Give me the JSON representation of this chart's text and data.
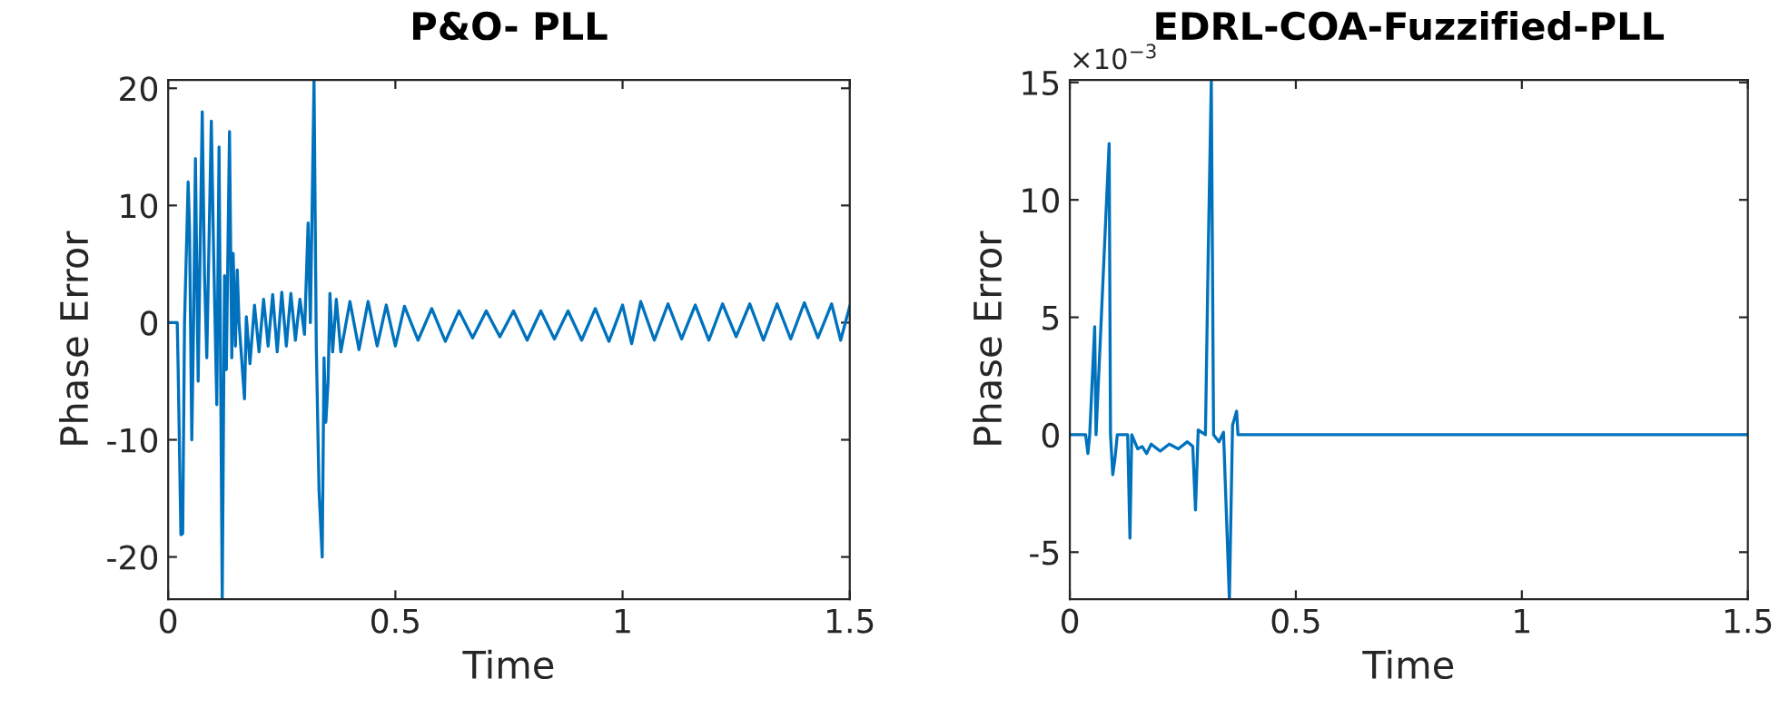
{
  "chart_data": [
    {
      "type": "line",
      "title": "P&O- PLL",
      "xlabel": "Time",
      "ylabel": "Phase Error",
      "xlim": [
        0,
        1.5
      ],
      "xticks": [
        0,
        0.5,
        1,
        1.5
      ],
      "ylim": [
        -23.6,
        20.7
      ],
      "yticks": [
        -20,
        -10,
        0,
        10,
        20
      ],
      "grid": false,
      "series": [
        {
          "color": "#0072bd",
          "x": [
            0,
            0.02,
            0.022,
            0.028,
            0.032,
            0.036,
            0.044,
            0.047,
            0.052,
            0.056,
            0.06,
            0.066,
            0.075,
            0.08,
            0.085,
            0.095,
            0.1,
            0.107,
            0.112,
            0.119,
            0.124,
            0.128,
            0.135,
            0.14,
            0.143,
            0.148,
            0.152,
            0.156,
            0.168,
            0.172,
            0.18,
            0.19,
            0.2,
            0.21,
            0.22,
            0.23,
            0.24,
            0.25,
            0.26,
            0.27,
            0.28,
            0.29,
            0.3,
            0.308,
            0.313,
            0.321,
            0.326,
            0.332,
            0.339,
            0.343,
            0.347,
            0.352,
            0.356,
            0.362,
            0.37,
            0.38,
            0.4,
            0.42,
            0.44,
            0.46,
            0.48,
            0.5,
            0.52,
            0.55,
            0.58,
            0.61,
            0.64,
            0.67,
            0.7,
            0.73,
            0.76,
            0.79,
            0.82,
            0.85,
            0.88,
            0.91,
            0.94,
            0.97,
            1.0,
            1.02,
            1.04,
            1.07,
            1.1,
            1.13,
            1.16,
            1.19,
            1.22,
            1.25,
            1.28,
            1.31,
            1.34,
            1.37,
            1.4,
            1.43,
            1.46,
            1.48,
            1.5
          ],
          "values": [
            0,
            0,
            -4,
            -18.1,
            -18,
            0,
            12,
            8,
            -10,
            0,
            14,
            -5,
            18,
            4,
            -3,
            17.2,
            6,
            -7,
            15,
            -23.6,
            4,
            -4,
            16.3,
            -3,
            5.9,
            -2,
            4.5,
            0,
            -6.5,
            0.5,
            -3.5,
            1.5,
            -2.5,
            2,
            -2,
            2.4,
            -2.5,
            2.6,
            -2,
            2.5,
            -1.5,
            2,
            -1,
            8.5,
            0,
            20.7,
            -2,
            -14.3,
            -20,
            -3,
            -8.5,
            -5,
            2.5,
            -2.5,
            2,
            -2.5,
            1.8,
            -2.3,
            1.8,
            -2,
            1.5,
            -2,
            1.4,
            -1.5,
            1.2,
            -1.6,
            1,
            -1.3,
            1,
            -1.2,
            1,
            -1.5,
            1,
            -1.4,
            1,
            -1.5,
            1.2,
            -1.6,
            1.5,
            -1.8,
            1.8,
            -1.5,
            1.6,
            -1.4,
            1.5,
            -1.5,
            1.6,
            -1.2,
            1.6,
            -1.5,
            1.6,
            -1.4,
            1.7,
            -1.3,
            1.6,
            -1.5,
            1.4
          ]
        }
      ]
    },
    {
      "type": "line",
      "title": "EDRL-COA-Fuzzified-PLL",
      "xlabel": "Time",
      "ylabel": "Phase Error",
      "annotations": [
        "×10$^{−3}$"
      ],
      "xlim": [
        0,
        1.5
      ],
      "xticks": [
        0,
        0.5,
        1,
        1.5
      ],
      "ylim": [
        -7,
        15.1
      ],
      "yticks": [
        -5,
        0,
        5,
        10,
        15
      ],
      "grid": false,
      "series": [
        {
          "color": "#0072bd",
          "x": [
            0,
            0.035,
            0.04,
            0.044,
            0.055,
            0.058,
            0.087,
            0.09,
            0.095,
            0.1,
            0.105,
            0.128,
            0.133,
            0.137,
            0.15,
            0.16,
            0.17,
            0.18,
            0.2,
            0.22,
            0.24,
            0.26,
            0.272,
            0.278,
            0.284,
            0.3,
            0.306,
            0.313,
            0.318,
            0.33,
            0.34,
            0.353,
            0.36,
            0.369,
            0.372,
            1.5
          ],
          "values": [
            0,
            0,
            -0.8,
            0,
            4.6,
            0,
            12.4,
            0,
            -1.7,
            -1,
            0,
            0,
            -4.4,
            0,
            -0.6,
            -0.5,
            -0.8,
            -0.4,
            -0.7,
            -0.4,
            -0.6,
            -0.3,
            -0.5,
            -3.2,
            0.2,
            0,
            7.5,
            15.1,
            0,
            -0.3,
            0.1,
            -7,
            0.4,
            1.0,
            0,
            0
          ]
        }
      ]
    }
  ]
}
